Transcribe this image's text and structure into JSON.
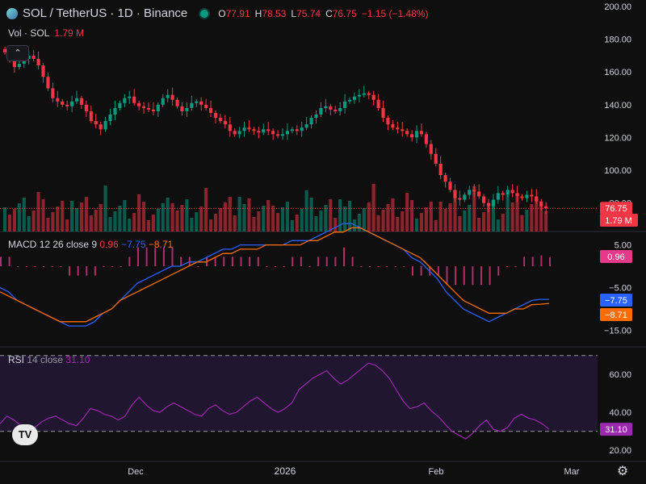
{
  "header": {
    "symbol": "SOL / TetherUS · 1D · Binance",
    "o_label": "O",
    "o_value": "77.91",
    "h_label": "H",
    "h_value": "78.53",
    "l_label": "L",
    "l_value": "75.74",
    "c_label": "C",
    "c_value": "76.75",
    "change": "−1.15 (−1.48%)"
  },
  "volume_legend": {
    "label": "Vol · SOL",
    "value": "1.79 M"
  },
  "macd_legend": {
    "label": "MACD",
    "params": "12 26 close 9",
    "hist": "0.96",
    "macd": "−7.75",
    "signal": "−8.71"
  },
  "rsi_legend": {
    "label": "RSI",
    "params": "14 close",
    "value": "31.10"
  },
  "colors": {
    "up": "#089981",
    "down": "#f23645",
    "macd_line": "#2962ff",
    "signal_line": "#ff6d00",
    "rsi_line": "#9c27b0",
    "bg": "#0f0f0f"
  },
  "icons": [
    "logo-icon",
    "market-open-dot-icon",
    "collapse-icon",
    "tradingview-logo-icon",
    "settings-icon"
  ],
  "chart_data": [
    {
      "type": "candlestick",
      "title": "SOL / TetherUS · 1D · Binance",
      "ylim": [
        68,
        200
      ],
      "y_ticks": [
        80,
        100,
        120,
        140,
        160,
        180,
        200
      ],
      "x_ticks": [
        "Dec",
        "2026",
        "Feb",
        "Mar"
      ],
      "last_price_label": "76.75",
      "close": [
        172,
        168,
        163,
        165,
        168,
        170,
        168,
        164,
        157,
        150,
        144,
        142,
        140,
        139,
        142,
        144,
        140,
        136,
        130,
        128,
        125,
        130,
        134,
        138,
        141,
        144,
        145,
        141,
        139,
        138,
        137,
        136,
        140,
        144,
        146,
        143,
        139,
        136,
        138,
        141,
        142,
        140,
        138,
        135,
        132,
        130,
        128,
        124,
        122,
        124,
        126,
        125,
        124,
        123,
        125,
        124,
        122,
        121,
        122,
        124,
        125,
        124,
        126,
        128,
        132,
        134,
        138,
        139,
        137,
        136,
        138,
        142,
        143,
        145,
        146,
        147,
        146,
        143,
        138,
        132,
        128,
        126,
        125,
        124,
        122,
        120,
        124,
        122,
        116,
        110,
        104,
        97,
        93,
        88,
        83,
        82,
        85,
        88,
        87,
        84,
        80,
        78,
        82,
        86,
        85,
        88,
        86,
        84,
        83,
        85,
        84,
        81,
        78,
        76.75
      ],
      "volume_label": "1.79 M"
    },
    {
      "type": "line",
      "name": "MACD 12 26 close 9",
      "y_ticks": [
        5,
        -5,
        -15
      ],
      "series": [
        {
          "name": "MACD",
          "values": [
            -5,
            -6,
            -8,
            -9,
            -10,
            -11,
            -12,
            -13,
            -14,
            -14,
            -14,
            -13,
            -11,
            -10,
            -8,
            -6,
            -4,
            -3,
            -2,
            -1,
            0,
            0,
            1,
            1,
            2,
            3,
            4,
            4,
            5,
            5,
            5,
            5,
            5,
            5,
            6,
            6,
            6,
            7,
            8,
            9,
            10,
            10,
            9,
            8,
            7,
            6,
            5,
            4,
            2,
            1,
            -1,
            -3,
            -6,
            -8,
            -10,
            -11,
            -12,
            -13,
            -12,
            -11,
            -10,
            -9,
            -8,
            -7.75,
            -7.75
          ]
        },
        {
          "name": "Signal",
          "values": [
            -6,
            -7,
            -8,
            -9,
            -10,
            -11,
            -12,
            -13,
            -13,
            -13,
            -13,
            -12,
            -11,
            -10,
            -8,
            -7,
            -6,
            -5,
            -4,
            -3,
            -2,
            -1,
            0,
            1,
            1,
            2,
            3,
            3,
            4,
            4,
            4,
            5,
            5,
            5,
            5,
            5,
            6,
            6,
            7,
            8,
            8,
            9,
            9,
            8,
            7,
            6,
            5,
            4,
            3,
            2,
            0,
            -2,
            -4,
            -6,
            -8,
            -9,
            -10,
            -11,
            -11,
            -11,
            -10,
            -10,
            -9,
            -8.9,
            -8.71
          ]
        }
      ],
      "last_values": [
        "0.96",
        "−7.75",
        "−8.71"
      ]
    },
    {
      "type": "line",
      "name": "RSI 14 close",
      "ylim": [
        20,
        70
      ],
      "y_ticks": [
        60,
        40,
        20
      ],
      "values": [
        34,
        38,
        36,
        33,
        30,
        32,
        35,
        37,
        38,
        36,
        34,
        33,
        37,
        42,
        41,
        39,
        38,
        36,
        38,
        44,
        48,
        44,
        41,
        40,
        43,
        45,
        43,
        41,
        39,
        38,
        42,
        44,
        41,
        39,
        40,
        43,
        46,
        48,
        45,
        42,
        40,
        42,
        45,
        52,
        55,
        58,
        60,
        62,
        58,
        55,
        57,
        60,
        63,
        66,
        65,
        62,
        58,
        52,
        46,
        42,
        43,
        45,
        41,
        38,
        34,
        30,
        28,
        26,
        29,
        33,
        36,
        31,
        30,
        32,
        37,
        39,
        37,
        36,
        34,
        31.1
      ],
      "last_value": "31.10"
    }
  ]
}
